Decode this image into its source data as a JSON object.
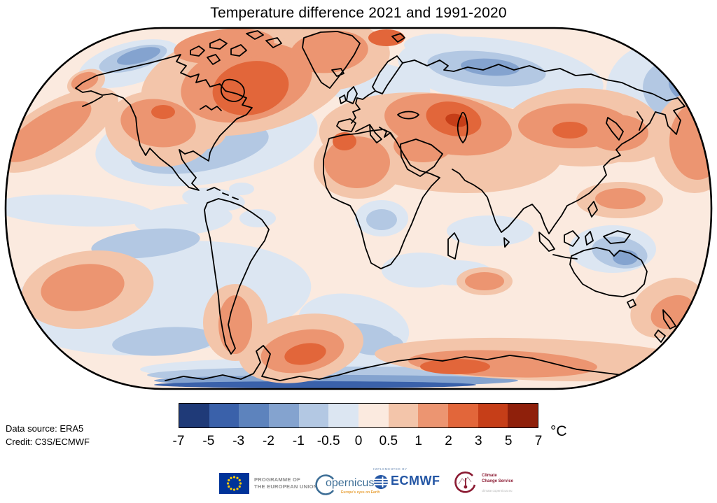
{
  "title": "Temperature difference 2021 and 1991-2020",
  "annotations": {
    "data_source": "Data source: ERA5",
    "credit": "Credit: C3S/ECMWF"
  },
  "colorbar": {
    "unit_label": "°C",
    "tick_labels": [
      "-7",
      "-5",
      "-3",
      "-2",
      "-1",
      "-0.5",
      "0",
      "0.5",
      "1",
      "2",
      "3",
      "5",
      "7"
    ],
    "segment_colors": [
      "#1f3a78",
      "#3a61aa",
      "#5d83bd",
      "#84a3cf",
      "#b3c8e3",
      "#dce6f2",
      "#fbeadf",
      "#f3c5aa",
      "#ec9571",
      "#e2663a",
      "#c63e18",
      "#8f200b"
    ]
  },
  "chart_data": {
    "type": "heatmap",
    "title": "Temperature difference 2021 and 1991-2020",
    "units": "°C",
    "projection": "Robinson world map",
    "legend_position": "bottom",
    "scale_breaks": [
      -7,
      -5,
      -3,
      -2,
      -1,
      -0.5,
      0,
      0.5,
      1,
      2,
      3,
      5,
      7
    ],
    "palette": [
      "#1f3a78",
      "#3a61aa",
      "#5d83bd",
      "#84a3cf",
      "#b3c8e3",
      "#dce6f2",
      "#fbeadf",
      "#f3c5aa",
      "#ec9571",
      "#e2663a",
      "#c63e18",
      "#8f200b"
    ],
    "data_source": "ERA5",
    "credit": "C3S/ECMWF",
    "warm_anomaly_regions": [
      "Northeast Canada / Hudson Bay",
      "Greenland and Canadian Arctic",
      "Western United States",
      "Northwest Africa / Sahara",
      "Middle East and Caspian region",
      "Central Asia / Mongolia / northern China",
      "Western North Pacific (map edges)",
      "Mid-latitude South Pacific patch",
      "Patagonia",
      "Antarctic Peninsula / Weddell Sea",
      "East Antarctic coast",
      "Seas around New Zealand",
      "New Guinea"
    ],
    "cool_anomaly_regions": [
      "Bering and Chukchi Seas",
      "Northeast Pacific",
      "Northern Europe / Scandinavia band",
      "Central Siberia",
      "Far-east Siberia",
      "Equatorial eastern Pacific",
      "Southern Ocean bands and Antarctic coast strip",
      "Interior Australia",
      "Southern Africa interior",
      "South Atlantic patches"
    ]
  },
  "footer_logos": {
    "eu_programme": {
      "line1": "PROGRAMME OF",
      "line2": "THE EUROPEAN UNION",
      "flag_blue": "#003399",
      "star_yellow": "#ffcc00"
    },
    "copernicus": {
      "wordmark": "opernicus",
      "tagline": "Europe's eyes on Earth",
      "brand_color": "#3d6e96",
      "tagline_color": "#e8a33d"
    },
    "ecmwf": {
      "implemented_by": "IMPLEMENTED BY",
      "wordmark": "ECMWF",
      "brand_color": "#2456a4"
    },
    "climate_change_service": {
      "line1": "Climate",
      "line2": "Change Service",
      "url": "climate.copernicus.eu",
      "brand_color": "#8b1a32"
    }
  }
}
